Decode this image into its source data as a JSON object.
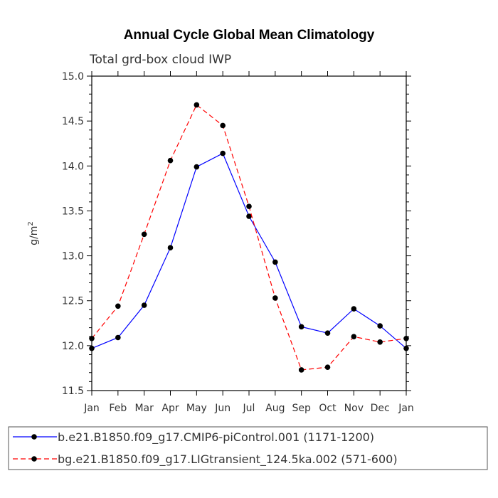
{
  "chart_data": {
    "type": "line",
    "title": "Annual Cycle Global Mean Climatology",
    "subtitle": "Total grd-box cloud IWP",
    "ylabel_base": "g/m",
    "ylabel_sup": "2",
    "xlabel": "",
    "ylim": [
      11.5,
      15.0
    ],
    "yticks": [
      "11.5",
      "12.0",
      "12.5",
      "13.0",
      "13.5",
      "14.0",
      "14.5",
      "15.0"
    ],
    "categories": [
      "Jan",
      "Feb",
      "Mar",
      "Apr",
      "May",
      "Jun",
      "Jul",
      "Aug",
      "Sep",
      "Oct",
      "Nov",
      "Dec",
      "Jan"
    ],
    "series": [
      {
        "name": "b.e21.B1850.f09_g17.CMIP6-piControl.001 (1171-1200)",
        "color": "#0000ff",
        "dash": "solid",
        "values": [
          11.97,
          12.09,
          12.45,
          13.09,
          13.99,
          14.14,
          13.44,
          12.93,
          12.21,
          12.14,
          12.41,
          12.22,
          11.97
        ]
      },
      {
        "name": "bg.e21.B1850.f09_g17.LIGtransient_124.5ka.002 (571-600)",
        "color": "#ff0000",
        "dash": "dashed",
        "values": [
          12.08,
          12.44,
          13.24,
          14.06,
          14.68,
          14.45,
          13.55,
          12.53,
          11.73,
          11.76,
          12.1,
          12.04,
          12.08
        ]
      }
    ],
    "legend_position": "bottom"
  }
}
